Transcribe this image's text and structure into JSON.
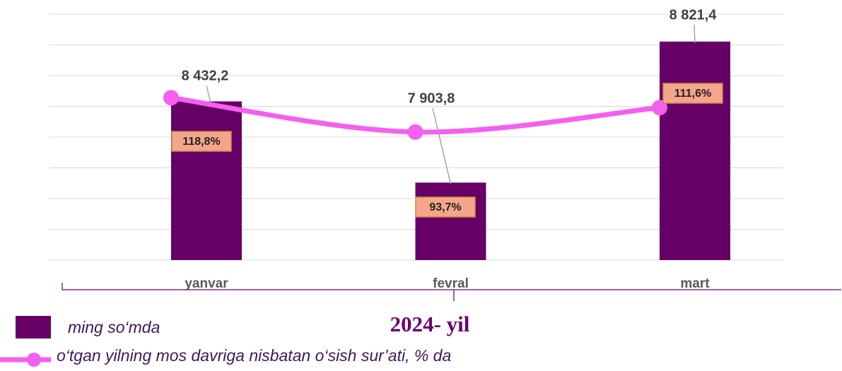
{
  "chart_data": {
    "type": "combo",
    "categories": [
      "yanvar",
      "fevral",
      "mart"
    ],
    "series": [
      {
        "name": "ming so‘mda",
        "type": "bar",
        "color": "#660066",
        "values": [
          8432.2,
          7903.8,
          8821.4
        ],
        "value_labels": [
          "8 432,2",
          "7 903,8",
          "8 821,4"
        ]
      },
      {
        "name": "o‘tgan yilning mos davriga nisbatan o‘sish sur’ati, % da",
        "type": "line",
        "axis": "y2",
        "color": "#f55ff0",
        "values": [
          118.8,
          93.7,
          111.6
        ],
        "value_labels": [
          "118,8%",
          "93,7%",
          "111,6%"
        ]
      }
    ],
    "ylim": [
      7400,
      9000
    ],
    "yticks": [
      7400,
      7600,
      7800,
      8000,
      8200,
      8400,
      8600,
      8800,
      9000
    ],
    "y2lim": [
      0,
      180
    ],
    "grid": true,
    "annotation": "2024- yil"
  }
}
